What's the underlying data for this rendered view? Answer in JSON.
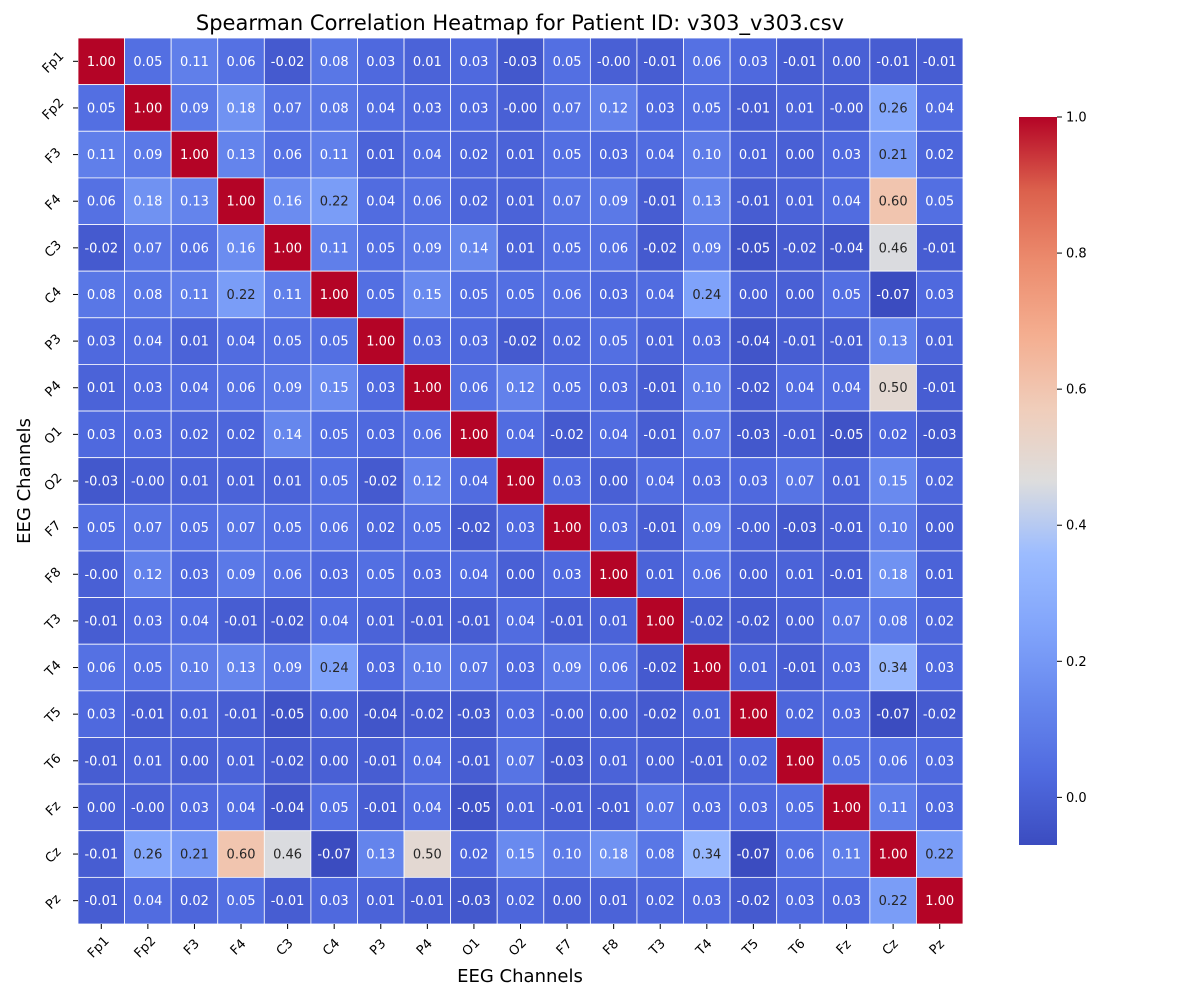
{
  "chart_data": {
    "type": "heatmap",
    "title": "Spearman Correlation Heatmap for Patient ID: v303_v303.csv",
    "xlabel": "EEG Channels",
    "ylabel": "EEG Channels",
    "x_categories": [
      "Fp1",
      "Fp2",
      "F3",
      "F4",
      "C3",
      "C4",
      "P3",
      "P4",
      "O1",
      "O2",
      "F7",
      "F8",
      "T3",
      "T4",
      "T5",
      "T6",
      "Fz",
      "Cz",
      "Pz"
    ],
    "y_categories": [
      "Fp1",
      "Fp2",
      "F3",
      "F4",
      "C3",
      "C4",
      "P3",
      "P4",
      "O1",
      "O2",
      "F7",
      "F8",
      "T3",
      "T4",
      "T5",
      "T6",
      "Fz",
      "Cz",
      "Pz"
    ],
    "value_range": [
      -0.07,
      1.0
    ],
    "colormap": "coolwarm",
    "annotation_format": "0.00",
    "colorbar_ticks": [
      1.0,
      0.8,
      0.6,
      0.4,
      0.2,
      0.0
    ],
    "colorbar_tick_labels": [
      "1.0",
      "0.8",
      "0.6",
      "0.4",
      "0.2",
      "0.0"
    ],
    "values": [
      [
        1.0,
        0.05,
        0.11,
        0.06,
        -0.02,
        0.08,
        0.03,
        0.01,
        0.03,
        -0.03,
        0.05,
        -0.0,
        -0.01,
        0.06,
        0.03,
        -0.01,
        0.0,
        -0.01,
        -0.01
      ],
      [
        0.05,
        1.0,
        0.09,
        0.18,
        0.07,
        0.08,
        0.04,
        0.03,
        0.03,
        -0.0,
        0.07,
        0.12,
        0.03,
        0.05,
        -0.01,
        0.01,
        -0.0,
        0.26,
        0.04
      ],
      [
        0.11,
        0.09,
        1.0,
        0.13,
        0.06,
        0.11,
        0.01,
        0.04,
        0.02,
        0.01,
        0.05,
        0.03,
        0.04,
        0.1,
        0.01,
        0.0,
        0.03,
        0.21,
        0.02
      ],
      [
        0.06,
        0.18,
        0.13,
        1.0,
        0.16,
        0.22,
        0.04,
        0.06,
        0.02,
        0.01,
        0.07,
        0.09,
        -0.01,
        0.13,
        -0.01,
        0.01,
        0.04,
        0.6,
        0.05
      ],
      [
        -0.02,
        0.07,
        0.06,
        0.16,
        1.0,
        0.11,
        0.05,
        0.09,
        0.14,
        0.01,
        0.05,
        0.06,
        -0.02,
        0.09,
        -0.05,
        -0.02,
        -0.04,
        0.46,
        -0.01
      ],
      [
        0.08,
        0.08,
        0.11,
        0.22,
        0.11,
        1.0,
        0.05,
        0.15,
        0.05,
        0.05,
        0.06,
        0.03,
        0.04,
        0.24,
        0.0,
        0.0,
        0.05,
        -0.07,
        0.03
      ],
      [
        0.03,
        0.04,
        0.01,
        0.04,
        0.05,
        0.05,
        1.0,
        0.03,
        0.03,
        -0.02,
        0.02,
        0.05,
        0.01,
        0.03,
        -0.04,
        -0.01,
        -0.01,
        0.13,
        0.01
      ],
      [
        0.01,
        0.03,
        0.04,
        0.06,
        0.09,
        0.15,
        0.03,
        1.0,
        0.06,
        0.12,
        0.05,
        0.03,
        -0.01,
        0.1,
        -0.02,
        0.04,
        0.04,
        0.5,
        -0.01
      ],
      [
        0.03,
        0.03,
        0.02,
        0.02,
        0.14,
        0.05,
        0.03,
        0.06,
        1.0,
        0.04,
        -0.02,
        0.04,
        -0.01,
        0.07,
        -0.03,
        -0.01,
        -0.05,
        0.02,
        -0.03
      ],
      [
        -0.03,
        -0.0,
        0.01,
        0.01,
        0.01,
        0.05,
        -0.02,
        0.12,
        0.04,
        1.0,
        0.03,
        0.0,
        0.04,
        0.03,
        0.03,
        0.07,
        0.01,
        0.15,
        0.02
      ],
      [
        0.05,
        0.07,
        0.05,
        0.07,
        0.05,
        0.06,
        0.02,
        0.05,
        -0.02,
        0.03,
        1.0,
        0.03,
        -0.01,
        0.09,
        -0.0,
        -0.03,
        -0.01,
        0.1,
        0.0
      ],
      [
        -0.0,
        0.12,
        0.03,
        0.09,
        0.06,
        0.03,
        0.05,
        0.03,
        0.04,
        0.0,
        0.03,
        1.0,
        0.01,
        0.06,
        0.0,
        0.01,
        -0.01,
        0.18,
        0.01
      ],
      [
        -0.01,
        0.03,
        0.04,
        -0.01,
        -0.02,
        0.04,
        0.01,
        -0.01,
        -0.01,
        0.04,
        -0.01,
        0.01,
        1.0,
        -0.02,
        -0.02,
        0.0,
        0.07,
        0.08,
        0.02
      ],
      [
        0.06,
        0.05,
        0.1,
        0.13,
        0.09,
        0.24,
        0.03,
        0.1,
        0.07,
        0.03,
        0.09,
        0.06,
        -0.02,
        1.0,
        0.01,
        -0.01,
        0.03,
        0.34,
        0.03
      ],
      [
        0.03,
        -0.01,
        0.01,
        -0.01,
        -0.05,
        0.0,
        -0.04,
        -0.02,
        -0.03,
        0.03,
        -0.0,
        0.0,
        -0.02,
        0.01,
        1.0,
        0.02,
        0.03,
        -0.07,
        -0.02
      ],
      [
        -0.01,
        0.01,
        0.0,
        0.01,
        -0.02,
        0.0,
        -0.01,
        0.04,
        -0.01,
        0.07,
        -0.03,
        0.01,
        0.0,
        -0.01,
        0.02,
        1.0,
        0.05,
        0.06,
        0.03
      ],
      [
        0.0,
        -0.0,
        0.03,
        0.04,
        -0.04,
        0.05,
        -0.01,
        0.04,
        -0.05,
        0.01,
        -0.01,
        -0.01,
        0.07,
        0.03,
        0.03,
        0.05,
        1.0,
        0.11,
        0.03
      ],
      [
        -0.01,
        0.26,
        0.21,
        0.6,
        0.46,
        -0.07,
        0.13,
        0.5,
        0.02,
        0.15,
        0.1,
        0.18,
        0.08,
        0.34,
        -0.07,
        0.06,
        0.11,
        1.0,
        0.22
      ],
      [
        -0.01,
        0.04,
        0.02,
        0.05,
        -0.01,
        0.03,
        0.01,
        -0.01,
        -0.03,
        0.02,
        0.0,
        0.01,
        0.02,
        0.03,
        -0.02,
        0.03,
        0.03,
        0.22,
        1.0
      ]
    ],
    "grid": false,
    "colorbar_position": "right"
  }
}
